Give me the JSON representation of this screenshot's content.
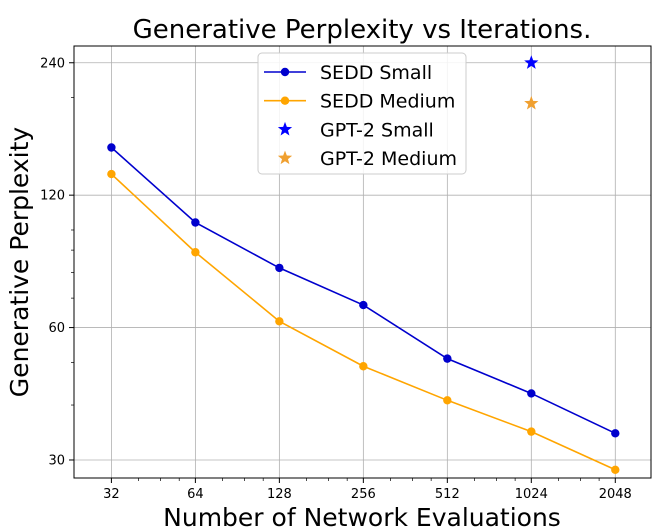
{
  "chart_data": {
    "type": "line",
    "title": "Generative Perplexity vs Iterations.",
    "xlabel": "Number of Network Evaluations",
    "ylabel": "Generative Perplexity",
    "xscale": "log2",
    "yscale": "log",
    "x_ticks": [
      32,
      64,
      128,
      256,
      512,
      1024,
      2048
    ],
    "x_tick_labels": [
      "32",
      "64",
      "128",
      "256",
      "512",
      "1024",
      "2048"
    ],
    "y_ticks": [
      30,
      60,
      120,
      240
    ],
    "y_tick_labels": [
      "30",
      "60",
      "120",
      "240"
    ],
    "xlim": [
      23.5,
      2750
    ],
    "ylim": [
      27.3,
      262
    ],
    "grid": true,
    "legend_position": "top-center",
    "series": [
      {
        "name": "SEDD Small",
        "kind": "line",
        "color": "#0000cd",
        "marker": "circle",
        "x": [
          32,
          64,
          128,
          256,
          512,
          1024,
          2048
        ],
        "y": [
          154,
          104,
          82,
          67.5,
          51,
          42.5,
          34.5
        ]
      },
      {
        "name": "SEDD Medium",
        "kind": "line",
        "color": "#ffa500",
        "marker": "circle",
        "x": [
          32,
          64,
          128,
          256,
          512,
          1024,
          2048
        ],
        "y": [
          134,
          89,
          62,
          49,
          41,
          34.8,
          28.5
        ]
      },
      {
        "name": "GPT-2 Small",
        "kind": "scatter",
        "color": "#0000ff",
        "marker": "star",
        "x": [
          1024
        ],
        "y": [
          240
        ]
      },
      {
        "name": "GPT-2 Medium",
        "kind": "scatter",
        "color": "#f0a030",
        "marker": "star",
        "x": [
          1024
        ],
        "y": [
          194
        ]
      }
    ]
  }
}
